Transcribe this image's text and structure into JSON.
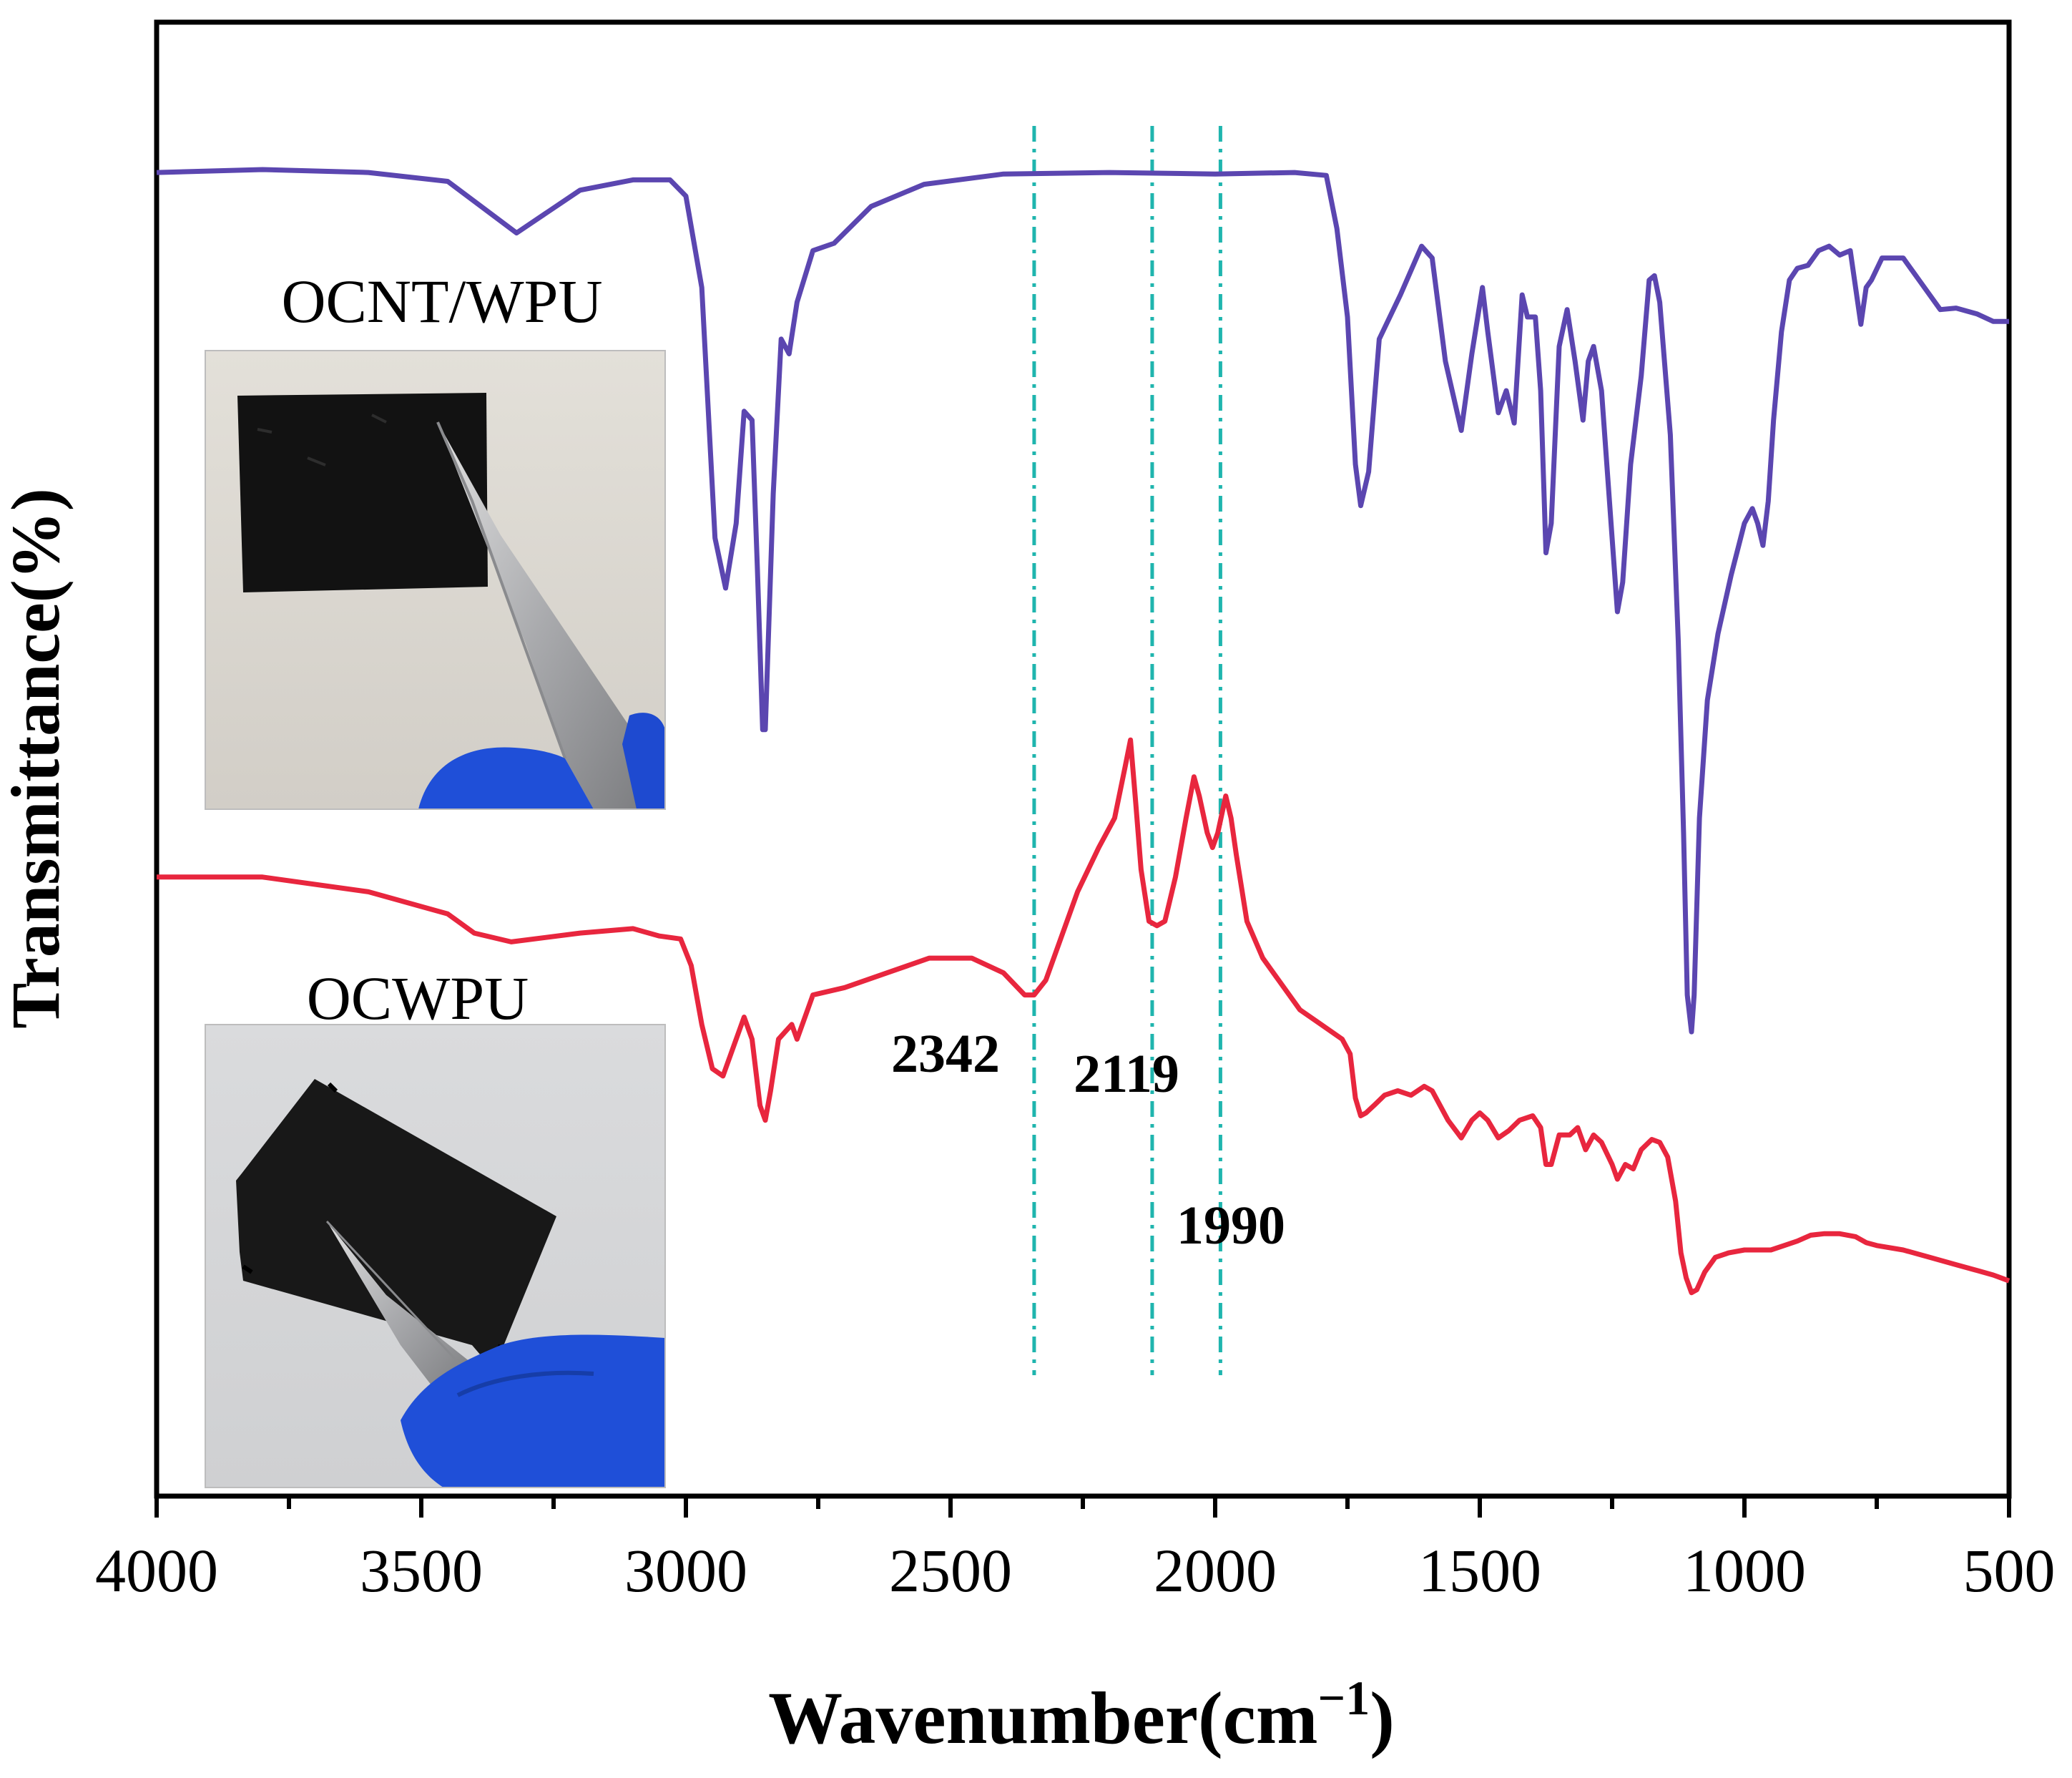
{
  "chart_data": {
    "type": "line",
    "title": "",
    "xlabel": "Wavenumber(cm",
    "xlabel_sup": "−1",
    "xlabel_close": ")",
    "ylabel": "Transmittance(%)",
    "xlim": [
      4000,
      500
    ],
    "ylim": [
      0,
      100
    ],
    "x_ticks": [
      4000,
      3500,
      3000,
      2500,
      2000,
      1500,
      1000,
      500
    ],
    "y_ticks_shown": false,
    "grid": false,
    "legend": "none",
    "reference_lines": [
      {
        "x": 2342,
        "label": "2342",
        "style": "dash-dot",
        "color": "#1fb5ae"
      },
      {
        "x": 2119,
        "label": "2119",
        "style": "dash-dot",
        "color": "#1fb5ae"
      },
      {
        "x": 1990,
        "label": "1990",
        "style": "dash-dot",
        "color": "#1fb5ae"
      }
    ],
    "series": [
      {
        "name": "OCNT/WPU",
        "color": "#5b46b0",
        "points": [
          [
            4000,
            89.8
          ],
          [
            3800,
            90.0
          ],
          [
            3600,
            89.8
          ],
          [
            3450,
            89.2
          ],
          [
            3320,
            85.7
          ],
          [
            3200,
            88.6
          ],
          [
            3100,
            89.3
          ],
          [
            3030,
            89.3
          ],
          [
            3000,
            88.2
          ],
          [
            2970,
            82.0
          ],
          [
            2945,
            65.0
          ],
          [
            2925,
            61.6
          ],
          [
            2905,
            66.0
          ],
          [
            2890,
            73.6
          ],
          [
            2875,
            73.0
          ],
          [
            2865,
            63.0
          ],
          [
            2855,
            52.0
          ],
          [
            2850,
            52.0
          ],
          [
            2835,
            68.0
          ],
          [
            2820,
            78.5
          ],
          [
            2805,
            77.5
          ],
          [
            2790,
            81.0
          ],
          [
            2760,
            84.5
          ],
          [
            2720,
            85.0
          ],
          [
            2650,
            87.5
          ],
          [
            2550,
            89.0
          ],
          [
            2400,
            89.7
          ],
          [
            2200,
            89.8
          ],
          [
            2000,
            89.7
          ],
          [
            1850,
            89.8
          ],
          [
            1790,
            89.6
          ],
          [
            1770,
            86.0
          ],
          [
            1750,
            80.0
          ],
          [
            1735,
            70.0
          ],
          [
            1725,
            67.2
          ],
          [
            1710,
            69.5
          ],
          [
            1690,
            78.5
          ],
          [
            1650,
            81.5
          ],
          [
            1610,
            84.8
          ],
          [
            1590,
            84.0
          ],
          [
            1565,
            77.0
          ],
          [
            1535,
            72.3
          ],
          [
            1515,
            77.5
          ],
          [
            1495,
            82.0
          ],
          [
            1485,
            79.0
          ],
          [
            1465,
            73.5
          ],
          [
            1450,
            75.0
          ],
          [
            1435,
            72.8
          ],
          [
            1420,
            81.5
          ],
          [
            1410,
            80.0
          ],
          [
            1395,
            80.0
          ],
          [
            1385,
            75.0
          ],
          [
            1375,
            64.0
          ],
          [
            1365,
            66.0
          ],
          [
            1350,
            78.0
          ],
          [
            1335,
            80.5
          ],
          [
            1320,
            77.0
          ],
          [
            1305,
            73.0
          ],
          [
            1295,
            77.0
          ],
          [
            1285,
            78.0
          ],
          [
            1270,
            75.0
          ],
          [
            1250,
            65.0
          ],
          [
            1240,
            60.0
          ],
          [
            1230,
            62.0
          ],
          [
            1215,
            70.0
          ],
          [
            1195,
            76.0
          ],
          [
            1180,
            82.5
          ],
          [
            1170,
            82.8
          ],
          [
            1160,
            81.0
          ],
          [
            1140,
            72.0
          ],
          [
            1125,
            58.0
          ],
          [
            1115,
            45.0
          ],
          [
            1108,
            34.0
          ],
          [
            1100,
            31.5
          ],
          [
            1095,
            34.0
          ],
          [
            1085,
            46.0
          ],
          [
            1070,
            54.0
          ],
          [
            1050,
            58.5
          ],
          [
            1025,
            62.5
          ],
          [
            1000,
            66.0
          ],
          [
            985,
            67.0
          ],
          [
            975,
            66.0
          ],
          [
            965,
            64.5
          ],
          [
            955,
            67.5
          ],
          [
            945,
            73.0
          ],
          [
            930,
            79.0
          ],
          [
            915,
            82.5
          ],
          [
            900,
            83.3
          ],
          [
            880,
            83.5
          ],
          [
            860,
            84.5
          ],
          [
            840,
            84.8
          ],
          [
            820,
            84.2
          ],
          [
            800,
            84.5
          ],
          [
            790,
            82.0
          ],
          [
            780,
            79.5
          ],
          [
            770,
            82.0
          ],
          [
            760,
            82.5
          ],
          [
            740,
            84.0
          ],
          [
            700,
            84.0
          ],
          [
            670,
            82.5
          ],
          [
            630,
            80.5
          ],
          [
            600,
            80.6
          ],
          [
            560,
            80.2
          ],
          [
            530,
            79.7
          ],
          [
            500,
            79.7
          ]
        ]
      },
      {
        "name": "OCWPU",
        "color": "#e8263e",
        "points": [
          [
            4000,
            42.0
          ],
          [
            3800,
            42.0
          ],
          [
            3600,
            41.0
          ],
          [
            3450,
            39.5
          ],
          [
            3400,
            38.2
          ],
          [
            3330,
            37.6
          ],
          [
            3200,
            38.2
          ],
          [
            3100,
            38.5
          ],
          [
            3050,
            38.0
          ],
          [
            3010,
            37.8
          ],
          [
            2990,
            36.0
          ],
          [
            2970,
            32.0
          ],
          [
            2950,
            29.0
          ],
          [
            2930,
            28.5
          ],
          [
            2910,
            30.5
          ],
          [
            2890,
            32.5
          ],
          [
            2875,
            31.0
          ],
          [
            2860,
            26.5
          ],
          [
            2850,
            25.5
          ],
          [
            2840,
            27.5
          ],
          [
            2825,
            31.0
          ],
          [
            2800,
            32.0
          ],
          [
            2790,
            31.0
          ],
          [
            2760,
            34.0
          ],
          [
            2700,
            34.5
          ],
          [
            2620,
            35.5
          ],
          [
            2540,
            36.5
          ],
          [
            2460,
            36.5
          ],
          [
            2400,
            35.5
          ],
          [
            2360,
            34.0
          ],
          [
            2342,
            34.0
          ],
          [
            2320,
            35.0
          ],
          [
            2300,
            37.0
          ],
          [
            2260,
            41.0
          ],
          [
            2220,
            44.0
          ],
          [
            2190,
            46.0
          ],
          [
            2170,
            49.5
          ],
          [
            2160,
            51.3
          ],
          [
            2150,
            47.0
          ],
          [
            2140,
            42.5
          ],
          [
            2125,
            39.0
          ],
          [
            2110,
            38.7
          ],
          [
            2095,
            39.0
          ],
          [
            2075,
            42.0
          ],
          [
            2055,
            46.0
          ],
          [
            2040,
            48.8
          ],
          [
            2030,
            47.5
          ],
          [
            2015,
            45.0
          ],
          [
            2005,
            44.0
          ],
          [
            1995,
            45.0
          ],
          [
            1980,
            47.5
          ],
          [
            1970,
            46.0
          ],
          [
            1960,
            43.5
          ],
          [
            1940,
            39.0
          ],
          [
            1910,
            36.5
          ],
          [
            1880,
            35.0
          ],
          [
            1840,
            33.0
          ],
          [
            1800,
            32.0
          ],
          [
            1760,
            31.0
          ],
          [
            1745,
            30.0
          ],
          [
            1735,
            27.0
          ],
          [
            1725,
            25.8
          ],
          [
            1715,
            26.0
          ],
          [
            1700,
            26.5
          ],
          [
            1680,
            27.2
          ],
          [
            1655,
            27.5
          ],
          [
            1630,
            27.2
          ],
          [
            1605,
            27.8
          ],
          [
            1590,
            27.5
          ],
          [
            1560,
            25.5
          ],
          [
            1535,
            24.3
          ],
          [
            1515,
            25.5
          ],
          [
            1500,
            26.0
          ],
          [
            1485,
            25.5
          ],
          [
            1465,
            24.3
          ],
          [
            1445,
            24.8
          ],
          [
            1425,
            25.5
          ],
          [
            1400,
            25.8
          ],
          [
            1385,
            25.0
          ],
          [
            1375,
            22.5
          ],
          [
            1365,
            22.5
          ],
          [
            1350,
            24.5
          ],
          [
            1330,
            24.5
          ],
          [
            1315,
            25.0
          ],
          [
            1300,
            23.5
          ],
          [
            1285,
            24.5
          ],
          [
            1270,
            24.0
          ],
          [
            1250,
            22.5
          ],
          [
            1240,
            21.5
          ],
          [
            1225,
            22.5
          ],
          [
            1210,
            22.2
          ],
          [
            1195,
            23.5
          ],
          [
            1175,
            24.2
          ],
          [
            1160,
            24.0
          ],
          [
            1145,
            23.0
          ],
          [
            1130,
            20.0
          ],
          [
            1120,
            16.5
          ],
          [
            1110,
            14.8
          ],
          [
            1100,
            13.8
          ],
          [
            1090,
            14.0
          ],
          [
            1075,
            15.2
          ],
          [
            1055,
            16.2
          ],
          [
            1030,
            16.5
          ],
          [
            1000,
            16.7
          ],
          [
            975,
            16.7
          ],
          [
            950,
            16.7
          ],
          [
            925,
            17.0
          ],
          [
            900,
            17.3
          ],
          [
            875,
            17.7
          ],
          [
            850,
            17.8
          ],
          [
            820,
            17.8
          ],
          [
            790,
            17.6
          ],
          [
            770,
            17.2
          ],
          [
            750,
            17.0
          ],
          [
            700,
            16.7
          ],
          [
            650,
            16.2
          ],
          [
            600,
            15.7
          ],
          [
            560,
            15.3
          ],
          [
            530,
            15.0
          ],
          [
            500,
            14.6
          ]
        ]
      }
    ],
    "annotations": [
      {
        "text": "OCNT/WPU",
        "position": "upper-left"
      },
      {
        "text": "OCWPU",
        "position": "lower-left"
      },
      {
        "text": "2342",
        "position": "below-left of 2342 line"
      },
      {
        "text": "2119",
        "position": "below 2119 line"
      },
      {
        "text": "1990",
        "position": "below 1990 line"
      }
    ]
  },
  "labels": {
    "ocnt_wpu": "OCNT/WPU",
    "ocwpu": "OCWPU",
    "mark_2342": "2342",
    "mark_2119": "2119",
    "mark_1990": "1990"
  },
  "colors": {
    "ref_line": "#1fb5ae",
    "axis": "#000000",
    "photo_bg_top": "#dcd9d3",
    "photo_bg_bottom": "#d4d5d7",
    "film": "#141414",
    "glove": "#1f4fd8",
    "blade": "#b7b8bb"
  }
}
